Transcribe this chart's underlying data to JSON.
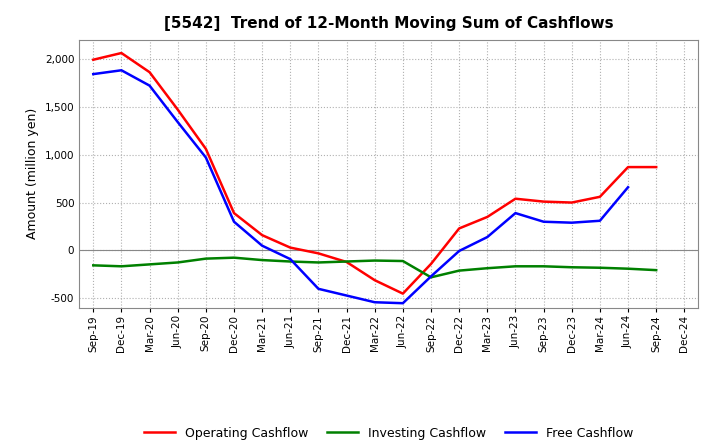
{
  "title": "[5542]  Trend of 12-Month Moving Sum of Cashflows",
  "ylabel": "Amount (million yen)",
  "ylim": [
    -600,
    2200
  ],
  "yticks": [
    -500,
    0,
    500,
    1000,
    1500,
    2000
  ],
  "x_labels": [
    "Sep-19",
    "Dec-19",
    "Mar-20",
    "Jun-20",
    "Sep-20",
    "Dec-20",
    "Mar-21",
    "Jun-21",
    "Sep-21",
    "Dec-21",
    "Mar-22",
    "Jun-22",
    "Sep-22",
    "Dec-22",
    "Mar-23",
    "Jun-23",
    "Sep-23",
    "Dec-23",
    "Mar-24",
    "Jun-24",
    "Sep-24",
    "Dec-24"
  ],
  "operating_cashflow": [
    1990,
    2060,
    1860,
    1470,
    1060,
    390,
    160,
    30,
    -30,
    -120,
    -310,
    -450,
    -140,
    230,
    350,
    540,
    510,
    500,
    560,
    870,
    870,
    null
  ],
  "investing_cashflow": [
    -155,
    -165,
    -145,
    -125,
    -85,
    -75,
    -100,
    -115,
    -125,
    -115,
    -105,
    -110,
    -280,
    -210,
    -185,
    -165,
    -165,
    -175,
    -180,
    -190,
    -205,
    null
  ],
  "free_cashflow": [
    1840,
    1880,
    1720,
    1340,
    970,
    300,
    50,
    -90,
    -400,
    -470,
    -540,
    -550,
    -270,
    -5,
    140,
    390,
    300,
    290,
    310,
    660,
    null,
    null
  ],
  "operating_color": "#ff0000",
  "investing_color": "#008000",
  "free_color": "#0000ff",
  "line_width": 1.8,
  "background_color": "#ffffff",
  "grid_color": "#b0b0b0",
  "title_fontsize": 11,
  "tick_fontsize": 7.5,
  "ylabel_fontsize": 9
}
